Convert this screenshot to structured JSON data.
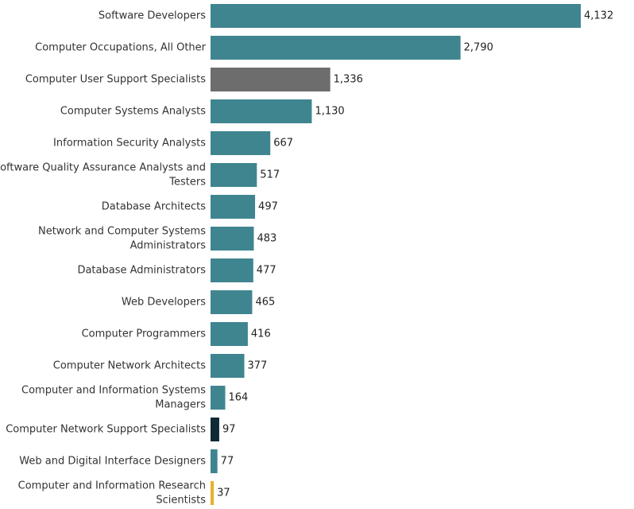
{
  "chart_data": {
    "type": "bar",
    "orientation": "horizontal",
    "title": "",
    "xlabel": "",
    "ylabel": "",
    "grid": false,
    "legend": "none",
    "xlim": [
      0,
      4500
    ],
    "categories": [
      "Software Developers",
      "Computer Occupations, All Other",
      "Computer User Support Specialists",
      "Computer Systems Analysts",
      "Information Security Analysts",
      "Software Quality Assurance Analysts and Testers",
      "Database Architects",
      "Network and Computer Systems Administrators",
      "Database Administrators",
      "Web Developers",
      "Computer Programmers",
      "Computer Network Architects",
      "Computer and Information Systems Managers",
      "Computer Network Support Specialists",
      "Web and Digital Interface Designers",
      "Computer and Information Research Scientists"
    ],
    "category_lines": [
      [
        "Software Developers"
      ],
      [
        "Computer Occupations, All Other"
      ],
      [
        "Computer User Support Specialists"
      ],
      [
        "Computer Systems Analysts"
      ],
      [
        "Information Security Analysts"
      ],
      [
        "Software Quality Assurance Analysts and",
        "Testers"
      ],
      [
        "Database Architects"
      ],
      [
        "Network and Computer Systems",
        "Administrators"
      ],
      [
        "Database Administrators"
      ],
      [
        "Web Developers"
      ],
      [
        "Computer Programmers"
      ],
      [
        "Computer Network Architects"
      ],
      [
        "Computer and Information Systems",
        "Managers"
      ],
      [
        "Computer Network Support Specialists"
      ],
      [
        "Web and Digital Interface Designers"
      ],
      [
        "Computer and Information Research",
        "Scientists"
      ]
    ],
    "values": [
      4132,
      2790,
      1336,
      1130,
      667,
      517,
      497,
      483,
      477,
      465,
      416,
      377,
      164,
      97,
      77,
      37
    ],
    "value_labels": [
      "4,132",
      "2,790",
      "1,336",
      "1,130",
      "667",
      "517",
      "497",
      "483",
      "477",
      "465",
      "416",
      "377",
      "164",
      "97",
      "77",
      "37"
    ],
    "colors": [
      "#3f8590",
      "#3f8590",
      "#6d6d6d",
      "#3f8590",
      "#3f8590",
      "#3f8590",
      "#3f8590",
      "#3f8590",
      "#3f8590",
      "#3f8590",
      "#3f8590",
      "#3f8590",
      "#3f8590",
      "#0e2a36",
      "#3f8590",
      "#e8b030"
    ]
  }
}
